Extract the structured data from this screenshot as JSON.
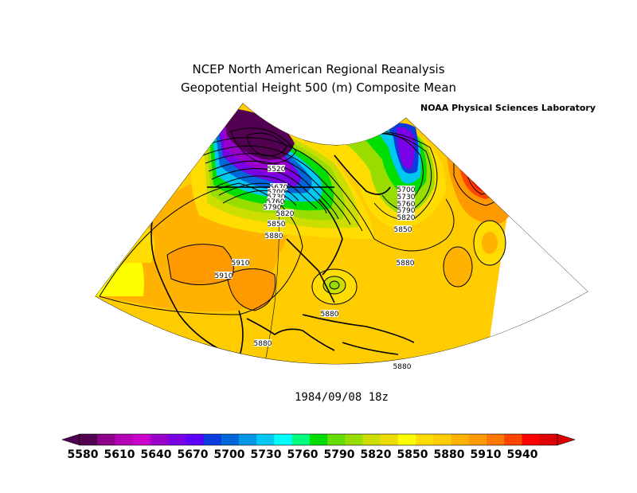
{
  "header": {
    "title_line1": "NCEP North American Regional Reanalysis",
    "title_line2": "Geopotential Height 500 (m) Composite Mean",
    "credit": "NOAA Physical Sciences Laboratory"
  },
  "map": {
    "region": "North America (Lambert conformal sector)",
    "fill_colors": {
      "background_high": "#ffcc00",
      "ridge_high": "#ffa500",
      "ridge_peak": "#ff0000"
    },
    "contour_labels": [
      {
        "text": "5520"
      },
      {
        "text": "5670"
      },
      {
        "text": "5700"
      },
      {
        "text": "5730"
      },
      {
        "text": "5760"
      },
      {
        "text": "5790"
      },
      {
        "text": "5820"
      },
      {
        "text": "5850"
      },
      {
        "text": "5880"
      },
      {
        "text": "5910"
      },
      {
        "text": "5910"
      },
      {
        "text": "5700"
      },
      {
        "text": "5730"
      },
      {
        "text": "5760"
      },
      {
        "text": "5790"
      },
      {
        "text": "5820"
      },
      {
        "text": "5850"
      },
      {
        "text": "5880"
      },
      {
        "text": "5880"
      },
      {
        "text": "5880"
      },
      {
        "text": "5880"
      }
    ]
  },
  "datestamp": "1984/09/08 18z",
  "colorbar": {
    "tick_labels": [
      "5580",
      "5610",
      "5640",
      "5670",
      "5700",
      "5730",
      "5760",
      "5790",
      "5820",
      "5850",
      "5880",
      "5910",
      "5940"
    ],
    "colors": [
      "#520052",
      "#8c008c",
      "#b300b3",
      "#cc00cc",
      "#9900cc",
      "#7a00e6",
      "#5a00ff",
      "#0a3cdc",
      "#0066d9",
      "#0096e6",
      "#00c8f0",
      "#00ffff",
      "#00ff7f",
      "#00dd00",
      "#66dd00",
      "#99dd00",
      "#ccdd00",
      "#eedd00",
      "#ffff00",
      "#ffdd00",
      "#ffcc00",
      "#ffb300",
      "#ff9900",
      "#ff7700",
      "#ff4400",
      "#ff0000",
      "#dd0000"
    ]
  }
}
